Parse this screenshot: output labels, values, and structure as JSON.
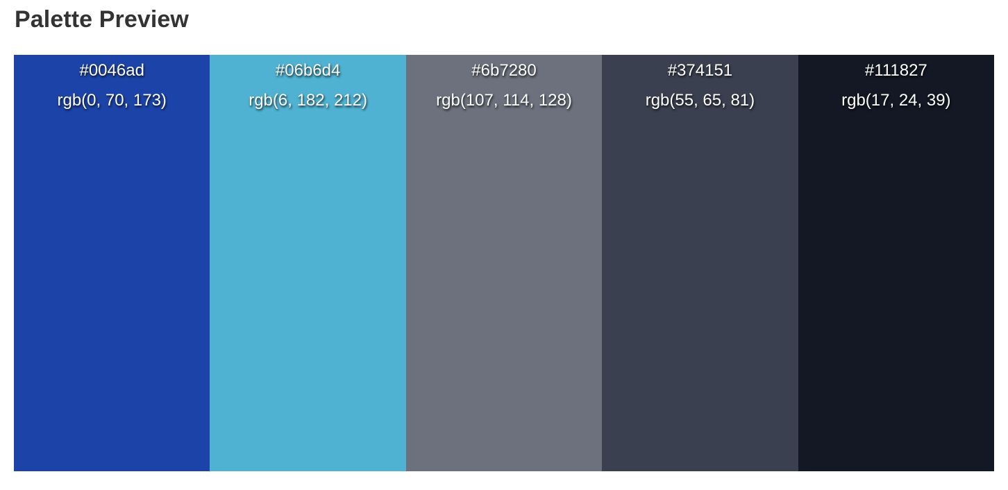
{
  "header": {
    "title": "Palette Preview"
  },
  "palette": {
    "swatches": [
      {
        "hex": "#0046ad",
        "rgb": "rgb(0, 70, 173)",
        "fill": "#1c44a8"
      },
      {
        "hex": "#06b6d4",
        "rgb": "rgb(6, 182, 212)",
        "fill": "#50b2d2"
      },
      {
        "hex": "#6b7280",
        "rgb": "rgb(107, 114, 128)",
        "fill": "#6c717d"
      },
      {
        "hex": "#374151",
        "rgb": "rgb(55, 65, 81)",
        "fill": "#3b4050"
      },
      {
        "hex": "#111827",
        "rgb": "rgb(17, 24, 39)",
        "fill": "#131824"
      }
    ]
  }
}
